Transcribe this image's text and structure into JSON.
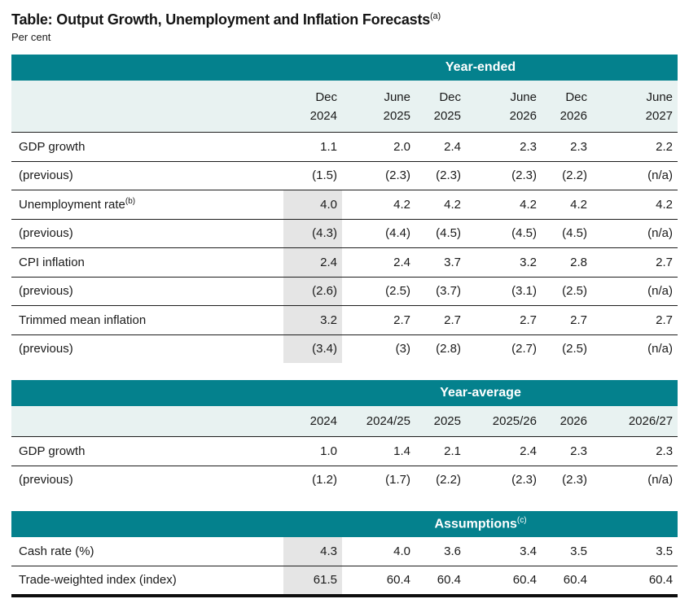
{
  "title": "Table: Output Growth, Unemployment and Inflation Forecasts",
  "title_sup": "(a)",
  "subtitle": "Per cent",
  "colors": {
    "band_teal": "#04818d",
    "column_header_bg": "#e8f2f1",
    "shaded_column_bg": "#e5e5e5",
    "row_border": "#1d1d1d",
    "bottom_border": "#0e0e0e",
    "band_text": "#ffffff",
    "body_text": "#1a1a1a"
  },
  "sections": [
    {
      "header": "Year-ended",
      "columns": [
        {
          "line1": "Dec",
          "line2": "2024"
        },
        {
          "line1": "June",
          "line2": "2025"
        },
        {
          "line1": "Dec",
          "line2": "2025"
        },
        {
          "line1": "June",
          "line2": "2026"
        },
        {
          "line1": "Dec",
          "line2": "2026"
        },
        {
          "line1": "June",
          "line2": "2027"
        }
      ],
      "rows": [
        {
          "label": "GDP growth",
          "values": [
            "1.1",
            "2.0",
            "2.4",
            "2.3",
            "2.3",
            "2.2"
          ]
        },
        {
          "label": "(previous)",
          "values": [
            "(1.5)",
            "(2.3)",
            "(2.3)",
            "(2.3)",
            "(2.2)",
            "(n/a)"
          ]
        },
        {
          "label": "Unemployment rate",
          "sup": "(b)",
          "values": [
            "4.0",
            "4.2",
            "4.2",
            "4.2",
            "4.2",
            "4.2"
          ]
        },
        {
          "label": "(previous)",
          "values": [
            "(4.3)",
            "(4.4)",
            "(4.5)",
            "(4.5)",
            "(4.5)",
            "(n/a)"
          ]
        },
        {
          "label": "CPI inflation",
          "values": [
            "2.4",
            "2.4",
            "3.7",
            "3.2",
            "2.8",
            "2.7"
          ]
        },
        {
          "label": "(previous)",
          "values": [
            "(2.6)",
            "(2.5)",
            "(3.7)",
            "(3.1)",
            "(2.5)",
            "(n/a)"
          ]
        },
        {
          "label": "Trimmed mean inflation",
          "values": [
            "3.2",
            "2.7",
            "2.7",
            "2.7",
            "2.7",
            "2.7"
          ]
        },
        {
          "label": "(previous)",
          "values": [
            "(3.4)",
            "(3)",
            "(2.8)",
            "(2.7)",
            "(2.5)",
            "(n/a)"
          ]
        }
      ]
    },
    {
      "header": "Year-average",
      "columns": [
        "2024",
        "2024/25",
        "2025",
        "2025/26",
        "2026",
        "2026/27"
      ],
      "rows": [
        {
          "label": "GDP growth",
          "values": [
            "1.0",
            "1.4",
            "2.1",
            "2.4",
            "2.3",
            "2.3"
          ]
        },
        {
          "label": "(previous)",
          "values": [
            "(1.2)",
            "(1.7)",
            "(2.2)",
            "(2.3)",
            "(2.3)",
            "(n/a)"
          ]
        }
      ]
    },
    {
      "header": "Assumptions",
      "header_sup": "(c)",
      "rows": [
        {
          "label": "Cash rate (%)",
          "values": [
            "4.3",
            "4.0",
            "3.6",
            "3.4",
            "3.5",
            "3.5"
          ]
        },
        {
          "label": "Trade-weighted index (index)",
          "values": [
            "61.5",
            "60.4",
            "60.4",
            "60.4",
            "60.4",
            "60.4"
          ]
        }
      ]
    }
  ]
}
